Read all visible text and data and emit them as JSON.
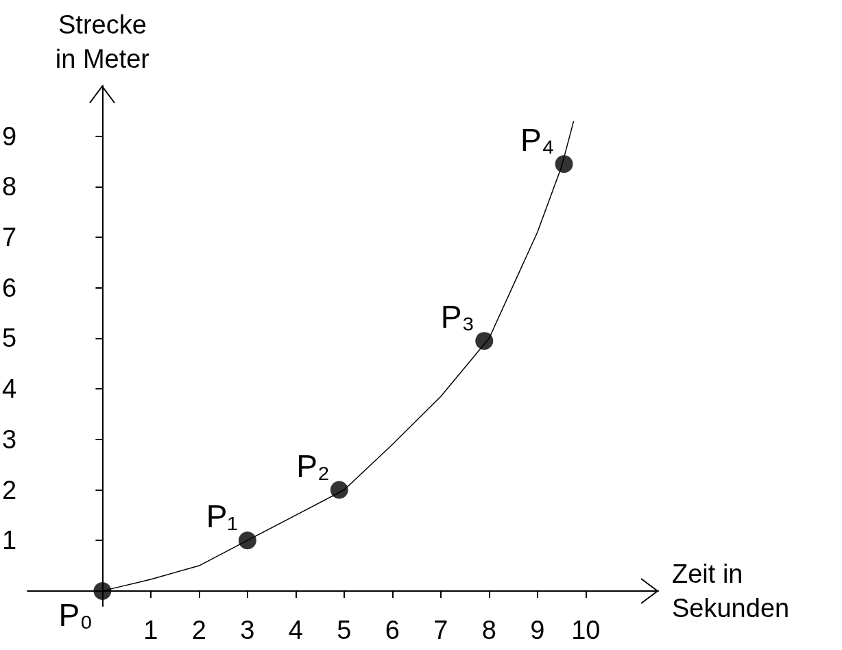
{
  "chart_data": {
    "type": "scatter",
    "xlabel": "Zeit in Sekunden",
    "ylabel": "Strecke in Meter",
    "xlim": [
      -1.55,
      11.5
    ],
    "ylim": [
      -0.3,
      10
    ],
    "xticks": [
      1,
      2,
      3,
      4,
      5,
      6,
      7,
      8,
      9,
      10
    ],
    "yticks": [
      1,
      2,
      3,
      4,
      5,
      6,
      7,
      8,
      9
    ],
    "grid": false,
    "series": [
      {
        "type": "line",
        "color": "#000000",
        "marker": "none",
        "x": [
          0,
          1,
          2,
          3,
          4,
          5,
          6,
          7,
          8,
          9,
          9.5,
          9.75
        ],
        "values": [
          0,
          0.23,
          0.5,
          1,
          1.5,
          2,
          2.9,
          3.85,
          5,
          7.1,
          8.4,
          9.3
        ]
      },
      {
        "color": "#000000",
        "marker": "circle",
        "x": [
          0,
          3,
          4.9,
          7.9,
          9.55
        ],
        "values": [
          0,
          1,
          2,
          4.95,
          8.45
        ]
      }
    ],
    "annotations": [
      {
        "text": "P₀",
        "x": 0,
        "y": 0
      },
      {
        "text": "P₁",
        "x": 3,
        "y": 1
      },
      {
        "text": "P₂",
        "x": 4.9,
        "y": 2
      },
      {
        "text": "P₃",
        "x": 7.9,
        "y": 4.95
      },
      {
        "text": "P₄",
        "x": 9.55,
        "y": 8.45
      }
    ]
  }
}
